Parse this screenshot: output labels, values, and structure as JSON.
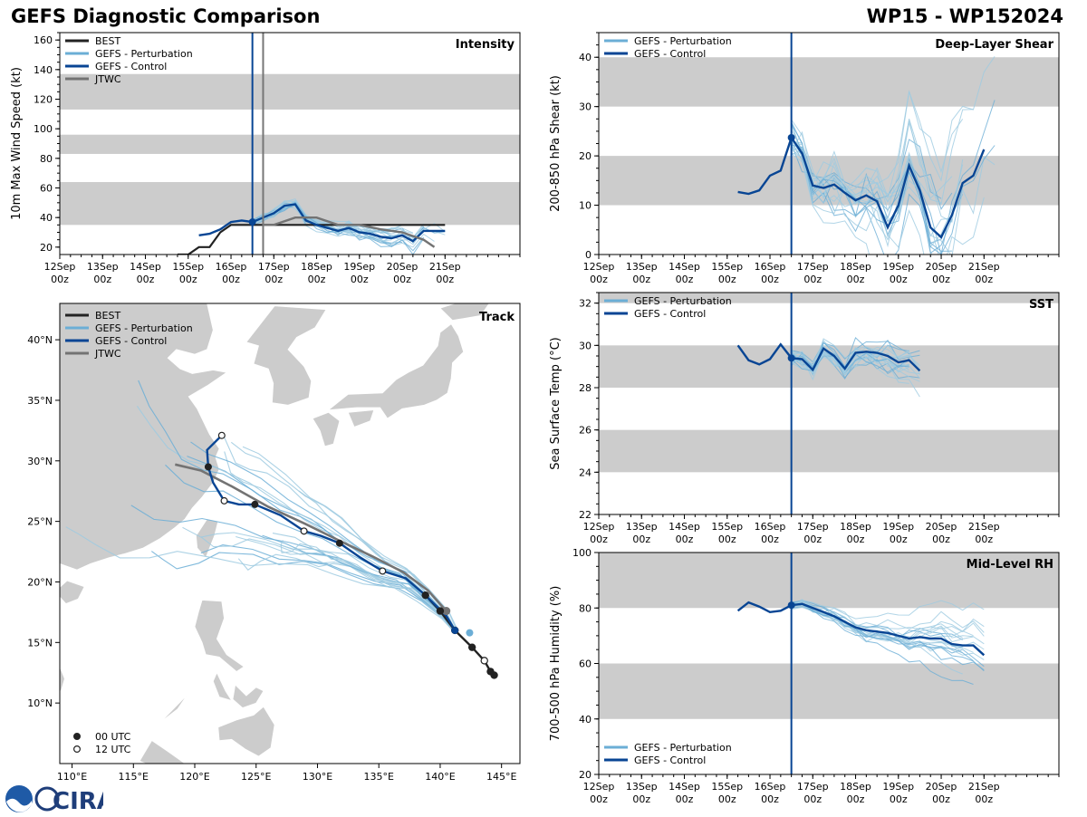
{
  "page": {
    "title_left": "GEFS Diagnostic Comparison",
    "title_right": "WP15 - WP152024",
    "logo_text": "CIRA"
  },
  "colors": {
    "best": "#222222",
    "perturbation": "#6baed6",
    "perturbation_light": "#9ecae1",
    "control": "#084594",
    "jtwc": "#737373",
    "band": "#cccccc",
    "land": "#cccccc",
    "init_line": "#084594",
    "jtwc_line": "#777777"
  },
  "time_axis": {
    "ticks": [
      "12Sep",
      "13Sep",
      "14Sep",
      "15Sep",
      "16Sep",
      "17Sep",
      "18Sep",
      "19Sep",
      "20Sep",
      "21Sep"
    ],
    "tick_sub": "00z",
    "min_day": 12,
    "max_day": 22.75,
    "init_day": 16.5,
    "jtwc_init_day": 16.75
  },
  "chart_data": [
    {
      "id": "intensity",
      "type": "line",
      "title": "Intensity",
      "ylabel": "10m Max Wind Speed (kt)",
      "ylim": [
        15,
        165
      ],
      "yticks": [
        20,
        40,
        60,
        80,
        100,
        120,
        140,
        160
      ],
      "bands": [
        [
          35,
          64
        ],
        [
          83,
          96
        ],
        [
          113,
          137
        ]
      ],
      "legend": [
        "BEST",
        "GEFS - Perturbation",
        "GEFS - Control",
        "JTWC"
      ],
      "series": [
        {
          "name": "BEST",
          "x": [
            14.75,
            15.0,
            15.25,
            15.5,
            15.75,
            16.0,
            16.25,
            16.5,
            16.75,
            17.0,
            17.25,
            17.5,
            17.75,
            18.0,
            18.25,
            18.5,
            18.75,
            19.0,
            19.25,
            19.5,
            19.75,
            20.0,
            20.25,
            20.5,
            20.75,
            21.0
          ],
          "y": [
            15,
            15,
            20,
            20,
            30,
            35,
            35,
            35,
            35,
            35,
            35,
            35,
            35,
            35,
            35,
            35,
            35,
            35,
            35,
            35,
            35,
            35,
            35,
            35,
            35,
            35
          ]
        },
        {
          "name": "GEFS - Control",
          "x": [
            15.25,
            15.5,
            15.75,
            16.0,
            16.25,
            16.5,
            16.75,
            17.0,
            17.25,
            17.5,
            17.75,
            18.0,
            18.25,
            18.5,
            18.75,
            19.0,
            19.25,
            19.5,
            19.75,
            20.0,
            20.25,
            20.5,
            20.75,
            21.0
          ],
          "y": [
            28,
            29,
            32,
            37,
            38,
            37,
            40,
            43,
            48,
            49,
            38,
            35,
            33,
            31,
            33,
            30,
            29,
            27,
            26,
            28,
            24,
            31,
            31,
            31
          ]
        },
        {
          "name": "JTWC",
          "x": [
            16.75,
            17.0,
            17.5,
            18.0,
            18.5,
            19.0,
            19.5,
            20.0,
            20.5,
            20.75
          ],
          "y": [
            35,
            35,
            40,
            40,
            35,
            35,
            32,
            30,
            25,
            20
          ]
        }
      ]
    },
    {
      "id": "shear",
      "type": "line",
      "title": "Deep-Layer Shear",
      "ylabel": "200-850 hPa Shear (kt)",
      "ylim": [
        0,
        45
      ],
      "yticks": [
        0,
        10,
        20,
        30,
        40
      ],
      "bands": [
        [
          10,
          20
        ],
        [
          30,
          40
        ]
      ],
      "legend": [
        "GEFS - Perturbation",
        "GEFS - Control"
      ],
      "series": [
        {
          "name": "GEFS - Control",
          "x": [
            15.25,
            15.5,
            15.75,
            16.0,
            16.25,
            16.5,
            16.75,
            17.0,
            17.25,
            17.5,
            17.75,
            18.0,
            18.25,
            18.5,
            18.75,
            19.0,
            19.25,
            19.5,
            19.75,
            20.0,
            20.25,
            20.5,
            20.75,
            21.0,
            21.25
          ],
          "y": [
            12.7,
            12.3,
            13,
            16,
            17,
            23.7,
            20.5,
            14,
            13.5,
            14.2,
            12.5,
            11,
            12,
            10.8,
            5.5,
            10,
            18,
            13,
            5.5,
            3.5,
            8,
            14.5,
            16,
            21.3,
            null
          ]
        }
      ]
    },
    {
      "id": "sst",
      "type": "line",
      "title": "SST",
      "ylabel": "Sea Surface Temp (°C)",
      "ylim": [
        22,
        32.5
      ],
      "yticks": [
        22,
        24,
        26,
        28,
        30,
        32
      ],
      "bands": [
        [
          24,
          26
        ],
        [
          28,
          30
        ],
        [
          32,
          32.5
        ]
      ],
      "legend": [
        "GEFS - Perturbation",
        "GEFS - Control"
      ],
      "series": [
        {
          "name": "GEFS - Control",
          "x": [
            15.25,
            15.5,
            15.75,
            16.0,
            16.25,
            16.5,
            16.75,
            17.0,
            17.25,
            17.5,
            17.75,
            18.0,
            18.25,
            18.5,
            18.75,
            19.0,
            19.25,
            19.5
          ],
          "y": [
            30,
            29.3,
            29.1,
            29.35,
            30.05,
            29.4,
            29.35,
            28.85,
            29.85,
            29.5,
            28.9,
            29.65,
            29.7,
            29.65,
            29.5,
            29.2,
            29.3,
            28.8
          ]
        }
      ]
    },
    {
      "id": "rh",
      "type": "line",
      "title": "Mid-Level RH",
      "ylabel": "700-500 hPa Humidity (%)",
      "ylim": [
        20,
        100
      ],
      "yticks": [
        20,
        40,
        60,
        80,
        100
      ],
      "bands": [
        [
          40,
          60
        ],
        [
          80,
          100
        ]
      ],
      "legend": [
        "GEFS - Perturbation",
        "GEFS - Control"
      ],
      "series": [
        {
          "name": "GEFS - Control",
          "x": [
            15.25,
            15.5,
            15.75,
            16.0,
            16.25,
            16.5,
            16.75,
            17.0,
            17.25,
            17.5,
            17.75,
            18.0,
            18.25,
            18.5,
            18.75,
            19.0,
            19.25,
            19.5,
            19.75,
            20.0,
            20.25,
            20.5,
            20.75,
            21.0
          ],
          "y": [
            79,
            82,
            80.5,
            78.5,
            79,
            81,
            81.5,
            80,
            78.5,
            77,
            75,
            73,
            72,
            71.5,
            71,
            70,
            69,
            69.5,
            69,
            69,
            67,
            66.5,
            66.5,
            63
          ]
        }
      ]
    },
    {
      "id": "track",
      "type": "scatter",
      "title": "Track",
      "lon_range": [
        109,
        146.5
      ],
      "lat_range": [
        5,
        43
      ],
      "lon_ticks": [
        "110°E",
        "115°E",
        "120°E",
        "125°E",
        "130°E",
        "135°E",
        "140°E",
        "145°E"
      ],
      "lat_ticks": [
        "10°N",
        "15°N",
        "20°N",
        "25°N",
        "30°N",
        "35°N",
        "40°N"
      ],
      "legend": [
        "BEST",
        "GEFS - Perturbation",
        "GEFS - Control",
        "JTWC"
      ],
      "marker_legend": [
        "00 UTC",
        "12 UTC"
      ],
      "best": [
        [
          144.4,
          12.3
        ],
        [
          144.1,
          12.6
        ],
        [
          143.6,
          13.5
        ],
        [
          142.6,
          14.6
        ],
        [
          141.2,
          16.0
        ],
        [
          140.0,
          17.6
        ],
        [
          138.8,
          18.9
        ]
      ],
      "control": [
        [
          141.2,
          16.0
        ],
        [
          140.5,
          17.2
        ],
        [
          138.8,
          18.9
        ],
        [
          137.2,
          20.3
        ],
        [
          135.3,
          20.9
        ],
        [
          133.5,
          22.0
        ],
        [
          131.8,
          23.2
        ],
        [
          130.3,
          23.8
        ],
        [
          128.9,
          24.2
        ],
        [
          127.0,
          25.5
        ],
        [
          124.9,
          26.4
        ],
        [
          123.6,
          26.4
        ],
        [
          122.4,
          26.7
        ],
        [
          121.5,
          28.2
        ],
        [
          121.1,
          29.5
        ],
        [
          121.0,
          30.9
        ],
        [
          122.2,
          32.1
        ]
      ],
      "jtwc": [
        [
          140.5,
          17.6
        ],
        [
          139.0,
          19.3
        ],
        [
          137.0,
          20.8
        ],
        [
          134.5,
          22.1
        ],
        [
          131.8,
          23.4
        ],
        [
          129.0,
          24.8
        ],
        [
          126.0,
          26.2
        ],
        [
          123.0,
          27.9
        ],
        [
          120.5,
          29.2
        ],
        [
          118.4,
          29.7
        ]
      ]
    }
  ]
}
